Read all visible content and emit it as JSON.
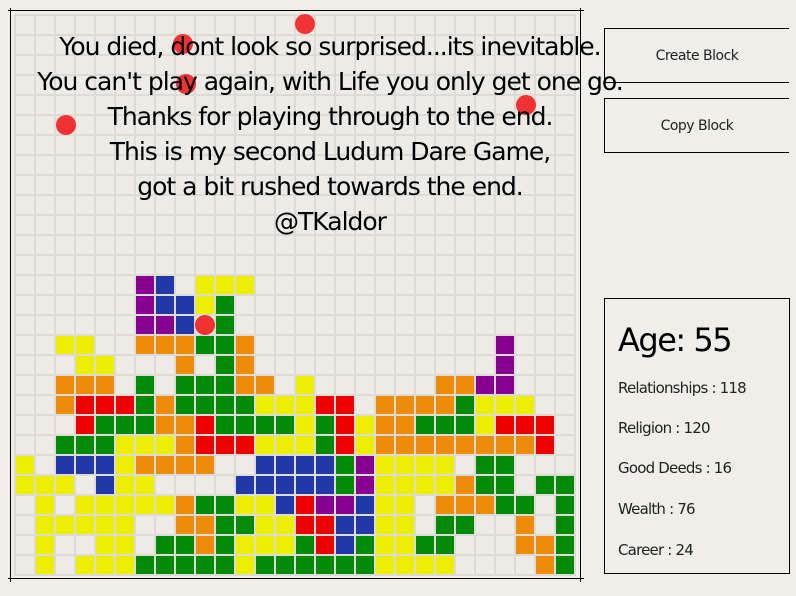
{
  "message": {
    "lines": [
      "You died, dont look so surprised...its inevitable.",
      "You can't play again, with Life you only get one go.",
      "Thanks for playing through to the end.",
      "This is my second Ludum Dare Game,",
      "got a bit rushed towards the end.",
      "@TKaldor"
    ]
  },
  "buttons": {
    "create_block": "Create Block",
    "copy_block": "Copy Block"
  },
  "stats": {
    "age": "Age: 55",
    "relationships": "Relationships : 118",
    "religion": "Religion : 120",
    "good_deeds": "Good Deeds : 16",
    "wealth": "Wealth : 76",
    "career": "Career : 24"
  },
  "colors": {
    "Y": "#eeee00",
    "O": "#ee8c0a",
    "G": "#008a08",
    "R": "#ee0000",
    "B": "#2038a8",
    "P": "#880090",
    "dot": "#f03232"
  },
  "board": {
    "columns": 28,
    "rows": 28,
    "filled_rows_from_top": [
      "......PB.YYY................",
      "......PBBYG.................",
      "......PPB.G.................",
      "..YY..OOOGGO............P...",
      "...YY...O.GO............P...",
      "..OOO.G.GGGOO.Y......OOPP...",
      "..ORRRGOGGGGYYYRR.OOOOGYYY..",
      "...RGGGOORGGGGYGRYOOGGGYRRR.",
      "..GGGYYYORRRYYYGRYOOOOOOOOR.",
      "Y.BBBYOOOO..BBBBGPYYYY.GG...",
      "YYY.BYY....BBBBBGPYYYYOGG.GG",
      ".Y.YYYYYOGGYYBRPPBYY.OOOGG.G",
      ".YYYYY..OOGGYYRRBBYY.GG..O.G",
      ".Y..YY.GGOGYYYGRBGYYGG...OOG",
      ".Y.YYYGGGGGYGGGGGGYYYY....OG"
    ]
  }
}
